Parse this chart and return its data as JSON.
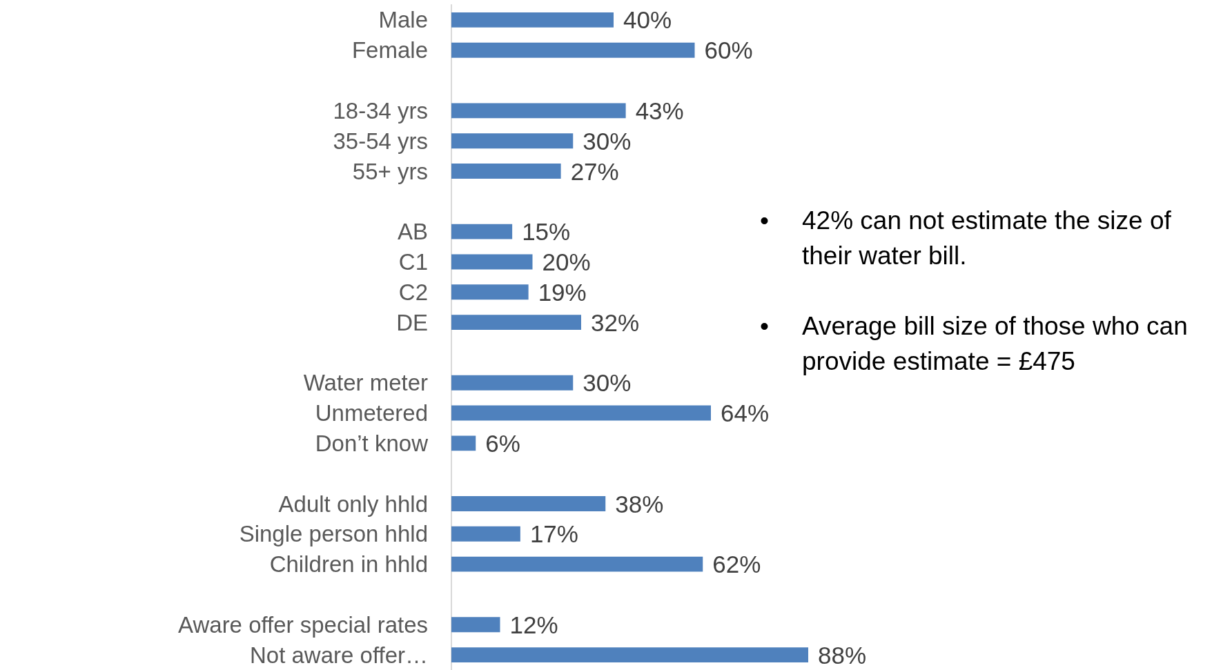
{
  "chart_data": {
    "type": "bar",
    "orientation": "horizontal",
    "categories": [
      "Male",
      "Female",
      null,
      "18-34 yrs",
      "35-54 yrs",
      "55+ yrs",
      null,
      "AB",
      "C1",
      "C2",
      "DE",
      null,
      "Water meter",
      "Unmetered",
      "Don’t know",
      null,
      "Adult only hhld",
      "Single person hhld",
      "Children in hhld",
      null,
      "Aware offer special rates",
      "Not aware offer…"
    ],
    "values": [
      40,
      60,
      null,
      43,
      30,
      27,
      null,
      15,
      20,
      19,
      32,
      null,
      30,
      64,
      6,
      null,
      38,
      17,
      62,
      null,
      12,
      88
    ],
    "value_labels": [
      "40%",
      "60%",
      null,
      "43%",
      "30%",
      "27%",
      null,
      "15%",
      "20%",
      "19%",
      "32%",
      null,
      "30%",
      "64%",
      "6%",
      null,
      "38%",
      "17%",
      "62%",
      null,
      "12%",
      "88%"
    ],
    "color": "#4f81bd",
    "annotations": [
      "• 42% can not estimate the size of their water bill.",
      "• Average bill size of those who can provide estimate = £475"
    ]
  }
}
